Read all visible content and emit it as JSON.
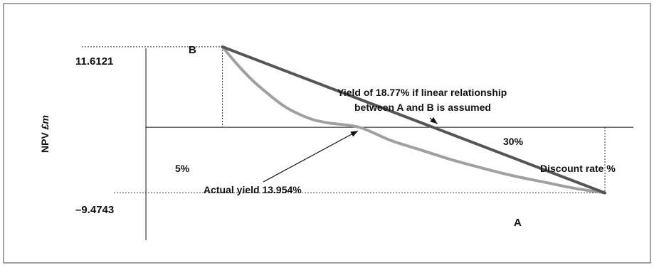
{
  "chart_data": {
    "type": "line",
    "xlabel": "Discount rate %",
    "ylabel_prefix": "NPV ",
    "ylabel_unit": "£m",
    "points": {
      "B": {
        "label": "B",
        "x": 5,
        "y": 11.6121
      },
      "A": {
        "label": "A",
        "x": 30,
        "y": -9.4743
      }
    },
    "tick_labels": {
      "x_low": "5%",
      "x_high": "30%",
      "y_high": "11.6121",
      "y_low": "–9.4743"
    },
    "series": [
      {
        "id": "linear",
        "description_shown": false,
        "color": "#555555",
        "points": [
          [
            5,
            11.6121
          ],
          [
            30,
            -9.4743
          ]
        ],
        "yield": 18.77
      },
      {
        "id": "actual",
        "color": "#a0a0a0",
        "points": [
          [
            5,
            11.6121
          ],
          [
            6,
            9.0
          ],
          [
            7,
            6.7
          ],
          [
            8,
            4.8
          ],
          [
            9,
            3.1
          ],
          [
            10,
            1.9
          ],
          [
            11,
            1.05
          ],
          [
            12,
            0.6
          ],
          [
            13.954,
            0
          ],
          [
            16,
            -1.9
          ],
          [
            18,
            -3.3
          ],
          [
            20,
            -4.7
          ],
          [
            22,
            -5.9
          ],
          [
            24,
            -7.0
          ],
          [
            26,
            -7.9
          ],
          [
            28,
            -8.8
          ],
          [
            30,
            -9.4743
          ]
        ],
        "yield": 13.954
      }
    ],
    "annotations": {
      "linear_line1": "Yield of 18.77% if linear relationship",
      "linear_line2": "between A and B is assumed",
      "actual": "Actual yield 13.954%"
    },
    "grid": false,
    "xlim": [
      -0.7,
      32
    ],
    "ylim": [
      -16.5,
      15.5
    ]
  },
  "colors": {
    "linear": "#555555",
    "actual": "#a0a0a0",
    "axis": "#111111",
    "frame": "#444444"
  }
}
